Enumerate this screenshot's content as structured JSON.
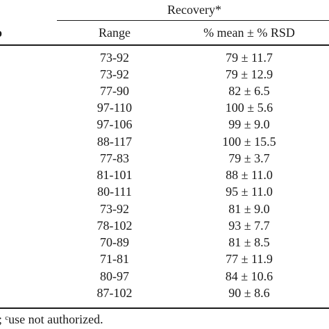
{
  "table": {
    "group_header": "Recovery*",
    "clipped_left_header": "o",
    "columns": {
      "range": "Range",
      "mean_rsd": "% mean ± % RSD"
    },
    "rows": [
      {
        "range": "73-92",
        "mean_rsd": "79 ± 11.7"
      },
      {
        "range": "73-92",
        "mean_rsd": "79 ± 12.9"
      },
      {
        "range": "77-90",
        "mean_rsd": "82 ± 6.5"
      },
      {
        "range": "97-110",
        "mean_rsd": "100 ± 5.6"
      },
      {
        "range": "97-106",
        "mean_rsd": "99 ± 9.0"
      },
      {
        "range": "88-117",
        "mean_rsd": "100 ± 15.5"
      },
      {
        "range": "77-83",
        "mean_rsd": "79 ± 3.7"
      },
      {
        "range": "81-101",
        "mean_rsd": "88 ± 11.0"
      },
      {
        "range": "80-111",
        "mean_rsd": "95 ± 11.0"
      },
      {
        "range": "73-92",
        "mean_rsd": "81 ± 9.0"
      },
      {
        "range": "78-102",
        "mean_rsd": "93 ± 7.7"
      },
      {
        "range": "70-89",
        "mean_rsd": "81 ± 8.5"
      },
      {
        "range": "71-81",
        "mean_rsd": "77 ± 11.9"
      },
      {
        "range": "80-97",
        "mean_rsd": "84 ± 10.6"
      },
      {
        "range": "87-102",
        "mean_rsd": "90 ± 8.6"
      }
    ],
    "footnote": "; ᶜuse not authorized."
  }
}
